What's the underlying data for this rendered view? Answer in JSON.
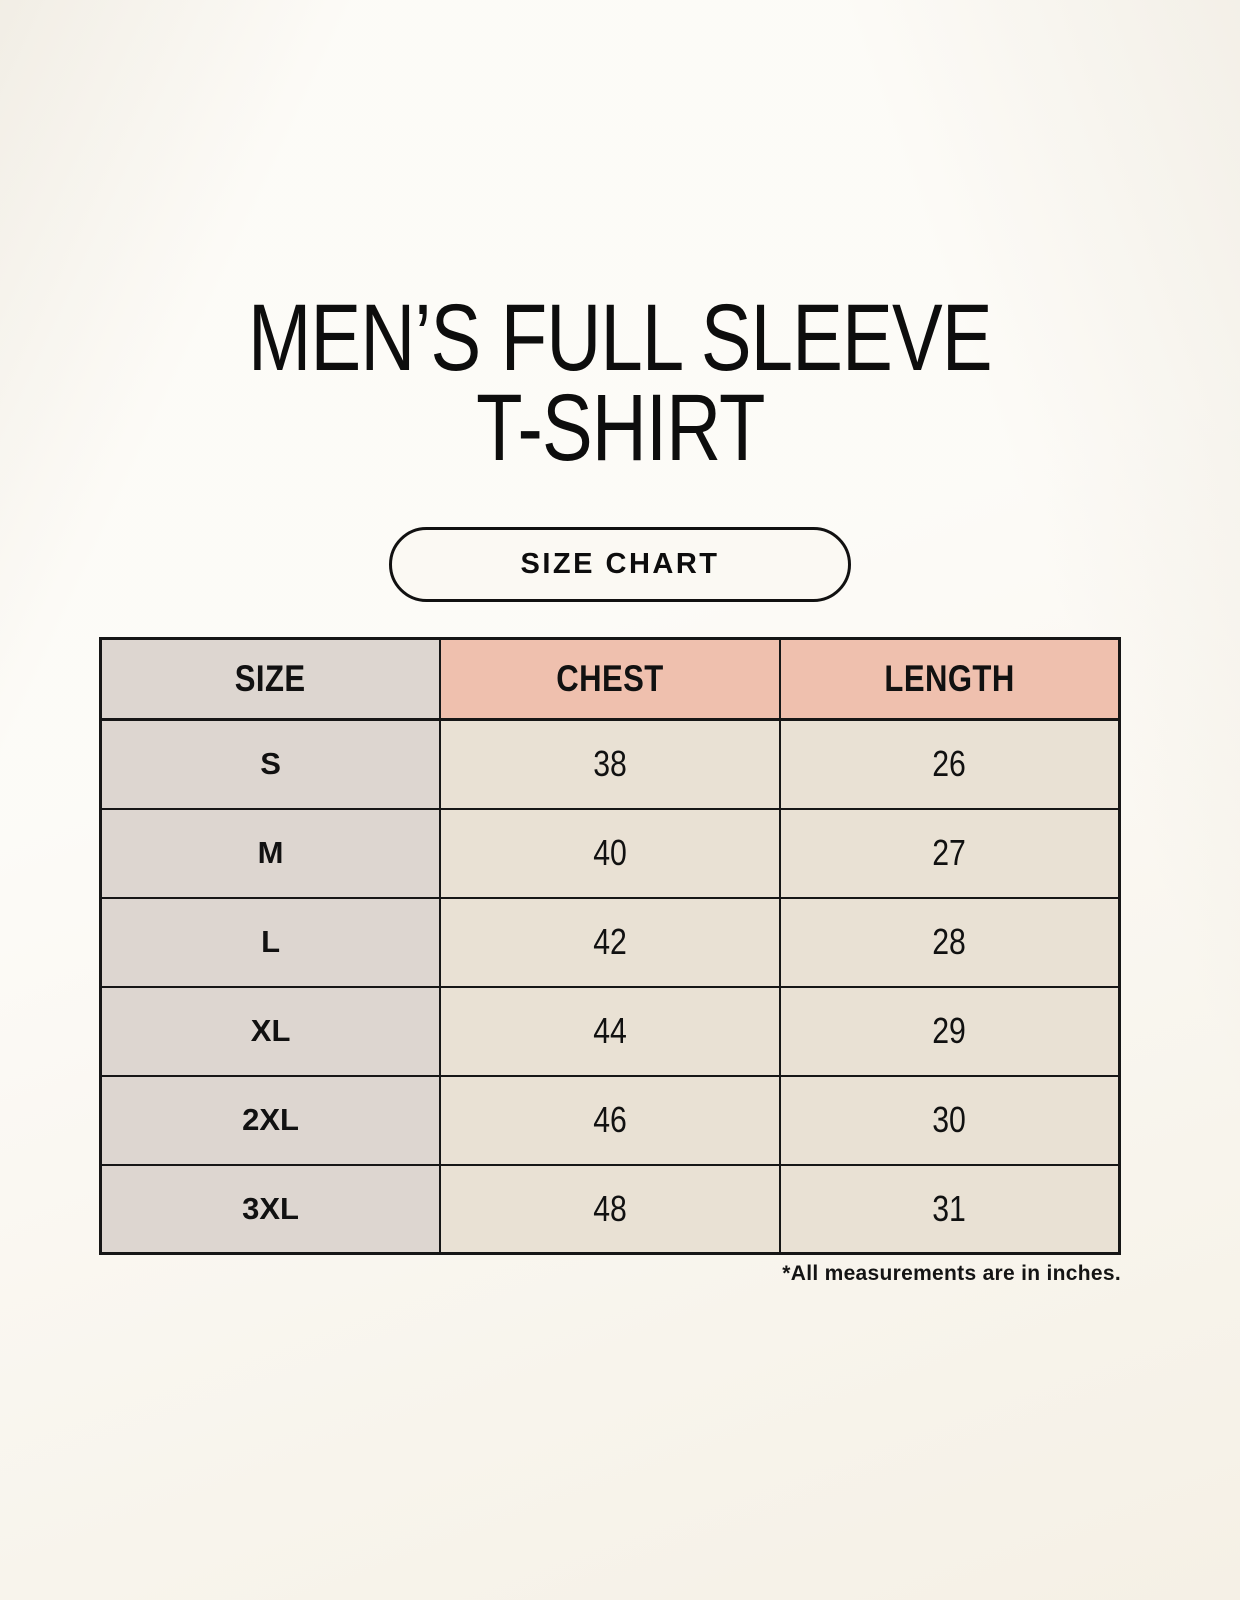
{
  "page": {
    "title_line1": "MEN’S FULL SLEEVE",
    "title_line2": "T-SHIRT",
    "badge_label": "SIZE CHART",
    "footnote": "*All measurements are in inches."
  },
  "chart_data": {
    "type": "table",
    "title": "MEN’S FULL SLEEVE T-SHIRT — SIZE CHART",
    "columns": [
      "SIZE",
      "CHEST",
      "LENGTH"
    ],
    "rows": [
      [
        "S",
        "38",
        "26"
      ],
      [
        "M",
        "40",
        "27"
      ],
      [
        "L",
        "42",
        "28"
      ],
      [
        "XL",
        "44",
        "29"
      ],
      [
        "2XL",
        "46",
        "30"
      ],
      [
        "3XL",
        "48",
        "31"
      ]
    ],
    "units": "inches"
  },
  "colors": {
    "background": "#f9f5ec",
    "header_pink": "#efc0ae",
    "size_column_gray": "#ddd6d0",
    "data_cell_cream": "#e9e1d4",
    "table_border": "#161616",
    "text": "#0d0d0d"
  }
}
